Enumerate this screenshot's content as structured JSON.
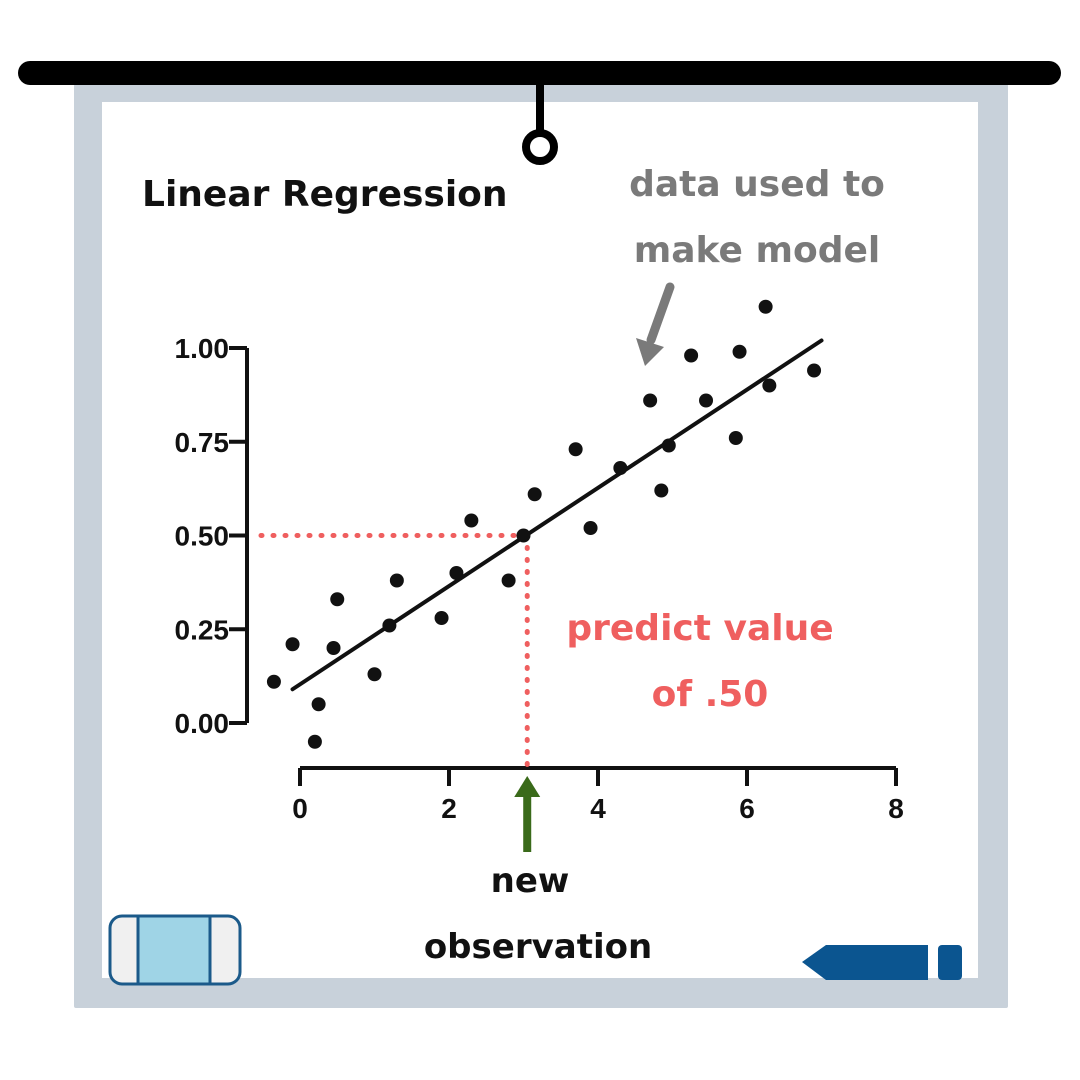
{
  "colors": {
    "board_frame": "#c8d1da",
    "board_surface": "#ffffff",
    "rail": "#000000",
    "ink": "#111111",
    "note_gray": "#7a7a7a",
    "guide_red": "#ef5f5f",
    "arrow_green": "#3a6a1a",
    "eraser_fill": "#9fd4e6",
    "eraser_body": "#f0f0f0",
    "eraser_stroke": "#1b5a8a",
    "marker_blue": "#0b5590"
  },
  "icons": {
    "rail": "whiteboard-rail-icon",
    "hook": "hanger-ring-icon",
    "eraser": "eraser-icon",
    "marker": "marker-icon"
  },
  "labels": {
    "title": "Linear Regression",
    "note_line1": "data used to",
    "note_line2": "make model",
    "predict_line1": "predict value",
    "predict_line2": "of .50",
    "new_line1": "new",
    "new_line2": "observation"
  },
  "chart_data": {
    "type": "scatter",
    "title": "Linear Regression",
    "xlabel": "",
    "ylabel": "",
    "xlim": [
      0,
      8
    ],
    "ylim": [
      0,
      1
    ],
    "x_ticks": [
      "0",
      "2",
      "4",
      "6",
      "8"
    ],
    "y_ticks": [
      "0.00",
      "0.25",
      "0.50",
      "0.75",
      "1.00"
    ],
    "grid": false,
    "points": [
      [
        -0.35,
        0.11
      ],
      [
        -0.1,
        0.21
      ],
      [
        0.2,
        -0.05
      ],
      [
        0.25,
        0.05
      ],
      [
        0.45,
        0.2
      ],
      [
        0.5,
        0.33
      ],
      [
        1.0,
        0.13
      ],
      [
        1.2,
        0.26
      ],
      [
        1.3,
        0.38
      ],
      [
        1.9,
        0.28
      ],
      [
        2.1,
        0.4
      ],
      [
        2.3,
        0.54
      ],
      [
        2.8,
        0.38
      ],
      [
        3.0,
        0.5
      ],
      [
        3.15,
        0.61
      ],
      [
        3.7,
        0.73
      ],
      [
        3.9,
        0.52
      ],
      [
        4.3,
        0.68
      ],
      [
        4.7,
        0.86
      ],
      [
        4.85,
        0.62
      ],
      [
        4.95,
        0.74
      ],
      [
        5.25,
        0.98
      ],
      [
        5.45,
        0.86
      ],
      [
        5.85,
        0.76
      ],
      [
        5.9,
        0.99
      ],
      [
        6.25,
        1.11
      ],
      [
        6.3,
        0.9
      ],
      [
        6.9,
        0.94
      ]
    ],
    "fit_line": {
      "x": [
        -0.1,
        7.0
      ],
      "y": [
        0.09,
        1.02
      ]
    },
    "new_observation": {
      "x": 3.05,
      "y": 0.5
    }
  }
}
